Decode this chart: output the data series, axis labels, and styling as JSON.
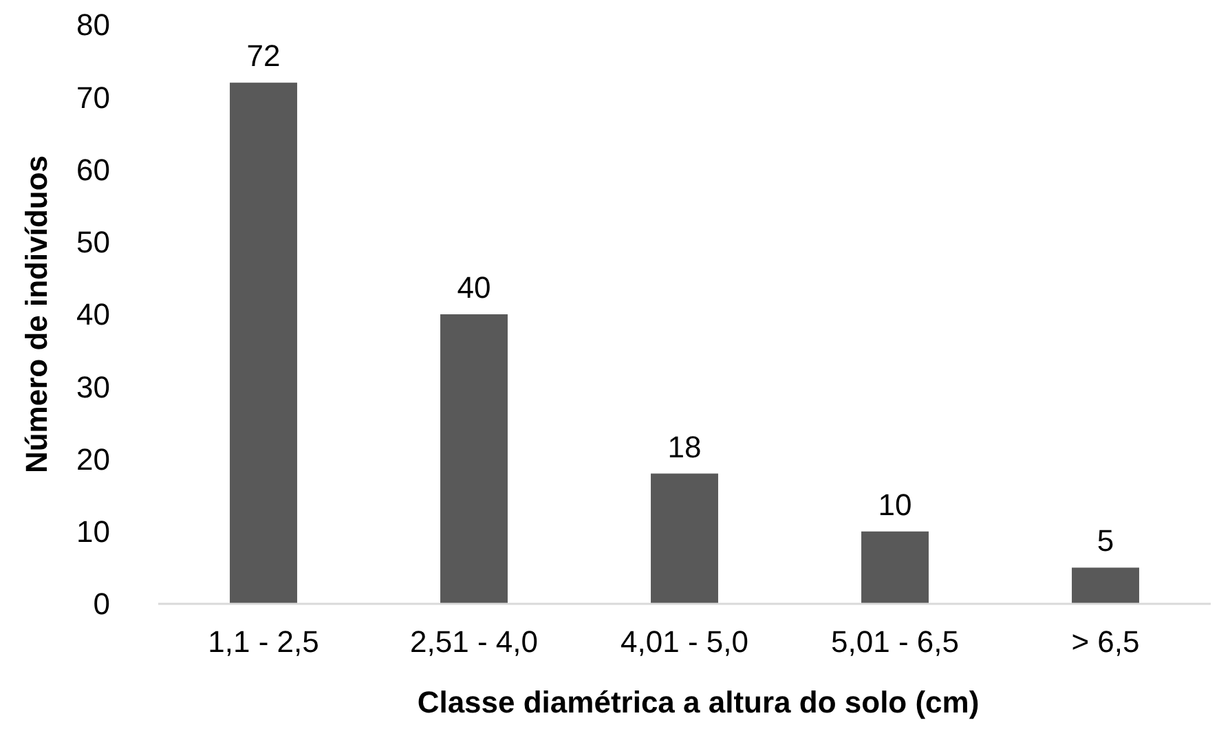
{
  "chart_data": {
    "type": "bar",
    "xlabel": "Classe diamétrica a altura do solo (cm)",
    "ylabel": "Número de indivíduos",
    "categories": [
      "1,1 - 2,5",
      "2,51 - 4,0",
      "4,01 - 5,0",
      "5,01 - 6,5",
      "> 6,5"
    ],
    "values": [
      72,
      40,
      18,
      10,
      5
    ],
    "color": "#595959",
    "ylim": [
      0,
      80
    ],
    "yticks": [
      0,
      10,
      20,
      30,
      40,
      50,
      60,
      70,
      80
    ],
    "grid": false,
    "data_labels": true
  }
}
